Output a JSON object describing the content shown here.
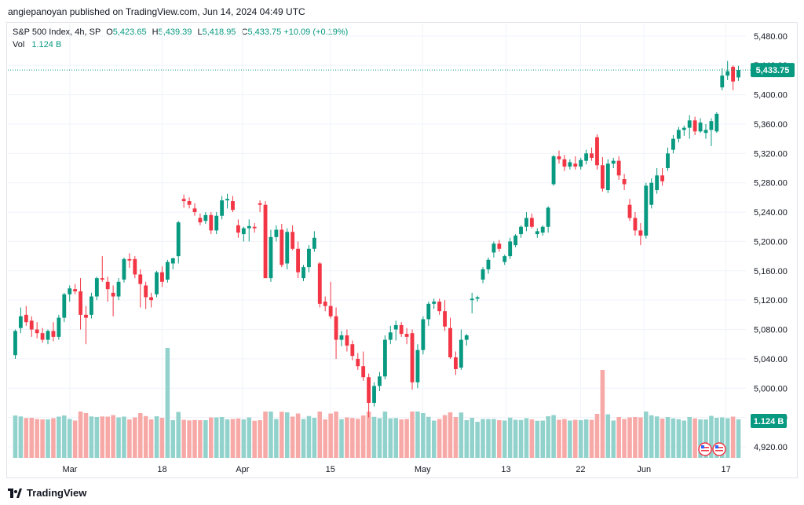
{
  "publisher": "angiepanoyan published on TradingView.com, Jun 14, 2024 04:49 UTC",
  "legend": {
    "symbol": "S&P 500 Index, 4h, SP",
    "open_label": "O",
    "open": "5,423.65",
    "high_label": "H",
    "high": "5,439.39",
    "low_label": "L",
    "low": "5,418.95",
    "close_label": "C",
    "close": "5,433.75",
    "change": "+10.09 (+0.19%)",
    "vol_label": "Vol",
    "vol": "1.124 B"
  },
  "footer": {
    "brand": "TradingView"
  },
  "colors": {
    "up": "#089981",
    "down": "#f23645",
    "vol_up": "#92d2cc",
    "vol_down": "#f7a9a7",
    "grid": "#f0f3fa"
  },
  "chart_data": {
    "type": "candlestick",
    "x_tick_labels": [
      "Mar",
      "18",
      "Apr",
      "15",
      "May",
      "13",
      "22",
      "Jun",
      "17"
    ],
    "y_tick_labels": [
      "5,480.00",
      "5,440.00",
      "5,400.00",
      "5,360.00",
      "5,320.00",
      "5,280.00",
      "5,240.00",
      "5,200.00",
      "5,160.00",
      "5,120.00",
      "5,080.00",
      "5,040.00",
      "5,000.00",
      "4,960.00",
      "4,920.00"
    ],
    "ylim": [
      4905,
      5497
    ],
    "last_price": 5433.75,
    "last_price_label": "5,433.75",
    "last_volume_label": "1.124 B",
    "grid": true,
    "series": [
      {
        "name": "S&P 500 Index",
        "ohlc": [
          [
            5045,
            5080,
            5040,
            5078
          ],
          [
            5082,
            5110,
            5075,
            5098
          ],
          [
            5100,
            5112,
            5085,
            5090
          ],
          [
            5092,
            5098,
            5070,
            5080
          ],
          [
            5080,
            5090,
            5068,
            5075
          ],
          [
            5075,
            5082,
            5062,
            5066
          ],
          [
            5066,
            5080,
            5060,
            5078
          ],
          [
            5078,
            5090,
            5064,
            5070
          ],
          [
            5070,
            5100,
            5066,
            5096
          ],
          [
            5096,
            5130,
            5090,
            5128
          ],
          [
            5128,
            5140,
            5118,
            5136
          ],
          [
            5135,
            5142,
            5128,
            5132
          ],
          [
            5132,
            5150,
            5080,
            5100
          ],
          [
            5100,
            5112,
            5060,
            5096
          ],
          [
            5100,
            5130,
            5095,
            5125
          ],
          [
            5125,
            5152,
            5120,
            5150
          ],
          [
            5150,
            5180,
            5145,
            5148
          ],
          [
            5145,
            5152,
            5118,
            5135
          ],
          [
            5130,
            5140,
            5098,
            5125
          ],
          [
            5125,
            5150,
            5120,
            5145
          ],
          [
            5148,
            5178,
            5144,
            5176
          ],
          [
            5176,
            5184,
            5164,
            5174
          ],
          [
            5176,
            5180,
            5150,
            5155
          ],
          [
            5155,
            5162,
            5110,
            5142
          ],
          [
            5140,
            5145,
            5108,
            5124
          ],
          [
            5124,
            5130,
            5110,
            5120
          ],
          [
            5128,
            5160,
            5124,
            5158
          ],
          [
            5158,
            5166,
            5138,
            5145
          ],
          [
            5148,
            5175,
            5144,
            5172
          ],
          [
            5170,
            5178,
            5162,
            5177
          ],
          [
            5180,
            5228,
            5170,
            5226
          ],
          [
            5258,
            5264,
            5246,
            5255
          ],
          [
            5255,
            5260,
            5245,
            5250
          ],
          [
            5245,
            5252,
            5235,
            5240
          ],
          [
            5232,
            5238,
            5222,
            5226
          ],
          [
            5228,
            5240,
            5224,
            5236
          ],
          [
            5236,
            5240,
            5210,
            5215
          ],
          [
            5215,
            5240,
            5210,
            5235
          ],
          [
            5235,
            5262,
            5230,
            5256
          ],
          [
            5256,
            5265,
            5245,
            5258
          ],
          [
            5255,
            5262,
            5240,
            5243
          ],
          [
            5222,
            5230,
            5205,
            5212
          ],
          [
            5210,
            5220,
            5200,
            5218
          ],
          [
            5218,
            5230,
            5200,
            5221
          ],
          [
            5220,
            5225,
            5212,
            5218
          ],
          [
            5252,
            5256,
            5240,
            5250
          ],
          [
            5250,
            5255,
            5150,
            5150
          ],
          [
            5150,
            5216,
            5145,
            5206
          ],
          [
            5206,
            5222,
            5200,
            5216
          ],
          [
            5216,
            5224,
            5165,
            5168
          ],
          [
            5170,
            5218,
            5162,
            5213
          ],
          [
            5213,
            5222,
            5188,
            5190
          ],
          [
            5190,
            5200,
            5150,
            5158
          ],
          [
            5150,
            5168,
            5146,
            5165
          ],
          [
            5165,
            5195,
            5158,
            5190
          ],
          [
            5190,
            5214,
            5186,
            5205
          ],
          [
            5170,
            5172,
            5110,
            5115
          ],
          [
            5118,
            5125,
            5105,
            5112
          ],
          [
            5112,
            5145,
            5095,
            5098
          ],
          [
            5098,
            5110,
            5040,
            5066
          ],
          [
            5066,
            5078,
            5057,
            5072
          ],
          [
            5072,
            5080,
            5050,
            5058
          ],
          [
            5060,
            5065,
            5038,
            5044
          ],
          [
            5040,
            5048,
            5025,
            5030
          ],
          [
            5030,
            5050,
            5010,
            5015
          ],
          [
            5015,
            5020,
            4960,
            4980
          ],
          [
            4980,
            5008,
            4975,
            5003
          ],
          [
            5003,
            5022,
            4996,
            5016
          ],
          [
            5016,
            5072,
            5012,
            5066
          ],
          [
            5066,
            5085,
            5060,
            5076
          ],
          [
            5080,
            5092,
            5065,
            5086
          ],
          [
            5086,
            5090,
            5070,
            5074
          ],
          [
            5074,
            5082,
            5060,
            5070
          ],
          [
            5075,
            5080,
            4998,
            5008
          ],
          [
            5008,
            5060,
            5000,
            5052
          ],
          [
            5052,
            5098,
            5046,
            5094
          ],
          [
            5094,
            5118,
            5085,
            5115
          ],
          [
            5115,
            5122,
            5108,
            5118
          ],
          [
            5118,
            5122,
            5100,
            5105
          ],
          [
            5105,
            5120,
            5078,
            5084
          ],
          [
            5082,
            5096,
            5040,
            5042
          ],
          [
            5042,
            5050,
            5018,
            5026
          ],
          [
            5028,
            5080,
            5025,
            5066
          ],
          [
            5066,
            5074,
            5058,
            5072
          ],
          [
            5120,
            5130,
            5102,
            5122
          ],
          [
            5122,
            5126,
            5118,
            5124
          ],
          [
            5148,
            5165,
            5143,
            5162
          ],
          [
            5162,
            5178,
            5156,
            5175
          ],
          [
            5185,
            5200,
            5178,
            5197
          ],
          [
            5197,
            5202,
            5186,
            5190
          ],
          [
            5172,
            5182,
            5168,
            5180
          ],
          [
            5180,
            5205,
            5176,
            5200
          ],
          [
            5195,
            5210,
            5192,
            5208
          ],
          [
            5210,
            5222,
            5205,
            5220
          ],
          [
            5220,
            5240,
            5214,
            5232
          ],
          [
            5232,
            5238,
            5218,
            5220
          ],
          [
            5210,
            5218,
            5205,
            5214
          ],
          [
            5212,
            5222,
            5208,
            5220
          ],
          [
            5220,
            5248,
            5212,
            5246
          ],
          [
            5278,
            5318,
            5276,
            5316
          ],
          [
            5316,
            5324,
            5306,
            5312
          ],
          [
            5312,
            5318,
            5296,
            5302
          ],
          [
            5302,
            5312,
            5298,
            5308
          ],
          [
            5306,
            5316,
            5298,
            5302
          ],
          [
            5302,
            5314,
            5298,
            5311
          ],
          [
            5310,
            5325,
            5305,
            5320
          ],
          [
            5320,
            5328,
            5310,
            5314
          ],
          [
            5342,
            5346,
            5298,
            5304
          ],
          [
            5304,
            5315,
            5268,
            5272
          ],
          [
            5270,
            5312,
            5266,
            5306
          ],
          [
            5306,
            5314,
            5300,
            5310
          ],
          [
            5310,
            5316,
            5284,
            5290
          ],
          [
            5285,
            5292,
            5270,
            5278
          ],
          [
            5250,
            5258,
            5228,
            5232
          ],
          [
            5232,
            5240,
            5208,
            5215
          ],
          [
            5215,
            5225,
            5195,
            5208
          ],
          [
            5208,
            5280,
            5204,
            5276
          ],
          [
            5250,
            5286,
            5245,
            5280
          ],
          [
            5270,
            5300,
            5265,
            5290
          ],
          [
            5290,
            5300,
            5276,
            5282
          ],
          [
            5300,
            5328,
            5296,
            5320
          ],
          [
            5325,
            5345,
            5320,
            5340
          ],
          [
            5340,
            5356,
            5335,
            5352
          ],
          [
            5352,
            5358,
            5344,
            5355
          ],
          [
            5355,
            5372,
            5340,
            5365
          ],
          [
            5365,
            5370,
            5345,
            5350
          ],
          [
            5350,
            5368,
            5348,
            5362
          ],
          [
            5348,
            5360,
            5340,
            5352
          ],
          [
            5352,
            5368,
            5330,
            5364
          ],
          [
            5350,
            5376,
            5348,
            5374
          ],
          [
            5410,
            5436,
            5406,
            5426
          ],
          [
            5426,
            5446,
            5420,
            5432
          ],
          [
            5438,
            5440,
            5406,
            5418
          ],
          [
            5423.65,
            5439.39,
            5418.95,
            5433.75
          ]
        ]
      }
    ]
  }
}
